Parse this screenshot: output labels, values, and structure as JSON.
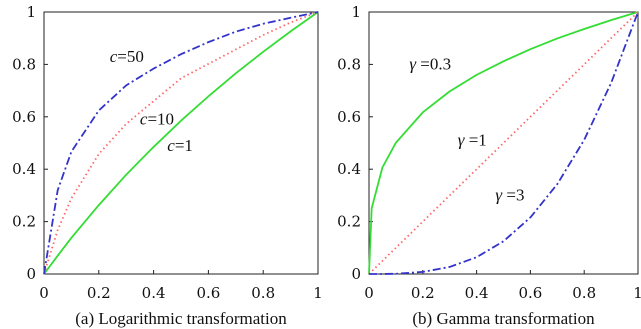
{
  "chart_data": [
    {
      "type": "line",
      "caption": "(a) Logarithmic transformation",
      "xlim": [
        0,
        1
      ],
      "ylim": [
        0,
        1
      ],
      "xticks": [
        0,
        0.2,
        0.4,
        0.6,
        0.8,
        1
      ],
      "yticks": [
        0,
        0.2,
        0.4,
        0.6,
        0.8,
        1
      ],
      "xtick_labels": [
        "0",
        "0.2",
        "0.4",
        "0.6",
        "0.8",
        "1"
      ],
      "ytick_labels": [
        "0",
        "0.2",
        "0.4",
        "0.6",
        "0.8",
        "1"
      ],
      "x": [
        0,
        0.05,
        0.1,
        0.2,
        0.3,
        0.4,
        0.5,
        0.6,
        0.7,
        0.8,
        0.9,
        1
      ],
      "series": [
        {
          "name": "c=1",
          "color": "#33dd33",
          "dash": "solid",
          "values": [
            0,
            0.07,
            0.138,
            0.263,
            0.379,
            0.485,
            0.585,
            0.678,
            0.766,
            0.848,
            0.926,
            1
          ]
        },
        {
          "name": "c=10",
          "color": "#ff6666",
          "dash": "dotted",
          "values": [
            0,
            0.168,
            0.289,
            0.458,
            0.573,
            0.66,
            0.747,
            0.802,
            0.857,
            0.912,
            0.96,
            1
          ]
        },
        {
          "name": "c=50",
          "color": "#3333cc",
          "dash": "dashdot",
          "values": [
            0,
            0.32,
            0.467,
            0.624,
            0.72,
            0.784,
            0.839,
            0.885,
            0.925,
            0.955,
            0.978,
            1
          ]
        }
      ],
      "annotations": [
        {
          "var": "c",
          "rest": "=50",
          "x": 0.24,
          "y": 0.81
        },
        {
          "var": "c",
          "rest": "=10",
          "x": 0.35,
          "y": 0.57
        },
        {
          "var": "c",
          "rest": "=1",
          "x": 0.45,
          "y": 0.47
        }
      ]
    },
    {
      "type": "line",
      "caption": "(b) Gamma transformation",
      "xlim": [
        0,
        1
      ],
      "ylim": [
        0,
        1
      ],
      "xticks": [
        0,
        0.2,
        0.4,
        0.6,
        0.8,
        1
      ],
      "yticks": [
        0,
        0.2,
        0.4,
        0.6,
        0.8,
        1
      ],
      "xtick_labels": [
        "0",
        "0.2",
        "0.4",
        "0.6",
        "0.8",
        "1"
      ],
      "ytick_labels": [
        "0",
        "0.2",
        "0.4",
        "0.6",
        "0.8",
        "1"
      ],
      "x": [
        0,
        0.01,
        0.05,
        0.1,
        0.2,
        0.3,
        0.4,
        0.5,
        0.6,
        0.7,
        0.8,
        0.9,
        1
      ],
      "series": [
        {
          "name": "γ =0.3",
          "color": "#33dd33",
          "dash": "solid",
          "values": [
            0,
            0.251,
            0.407,
            0.501,
            0.617,
            0.697,
            0.76,
            0.812,
            0.858,
            0.899,
            0.935,
            0.969,
            1
          ]
        },
        {
          "name": "γ =1",
          "color": "#ff6666",
          "dash": "dotted",
          "values": [
            0,
            0.01,
            0.05,
            0.1,
            0.2,
            0.3,
            0.4,
            0.5,
            0.6,
            0.7,
            0.8,
            0.9,
            1
          ]
        },
        {
          "name": "γ =3",
          "color": "#3333cc",
          "dash": "dashdot",
          "values": [
            0,
            0,
            0.0001,
            0.001,
            0.008,
            0.027,
            0.064,
            0.125,
            0.216,
            0.343,
            0.512,
            0.729,
            1
          ]
        }
      ],
      "annotations": [
        {
          "var": "γ",
          "rest": " =0.3",
          "x": 0.15,
          "y": 0.78
        },
        {
          "var": "γ",
          "rest": " =1",
          "x": 0.33,
          "y": 0.49
        },
        {
          "var": "γ",
          "rest": " =3",
          "x": 0.47,
          "y": 0.28
        }
      ]
    }
  ]
}
